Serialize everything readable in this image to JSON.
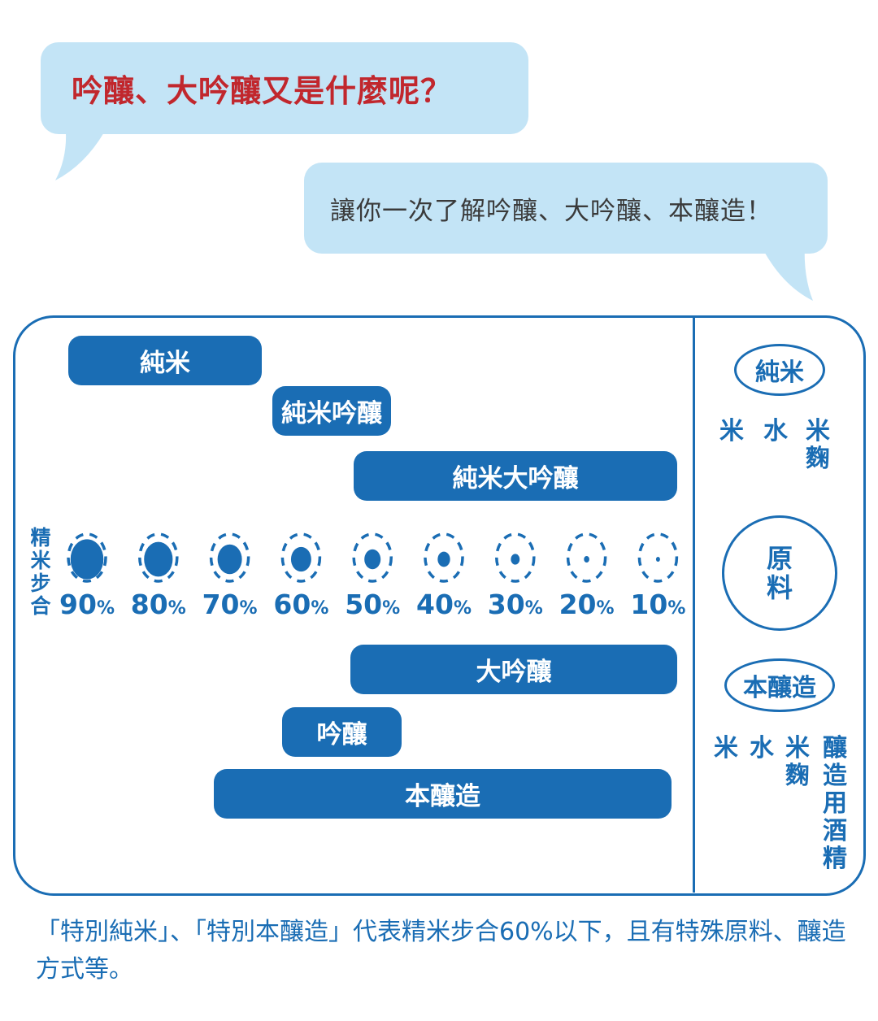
{
  "header": {
    "question": "吟釀、大吟釀又是什麼呢？",
    "answer": "讓你一次了解吟釀、大吟釀、本釀造！"
  },
  "colors": {
    "brand_blue": "#1a6db4",
    "bubble": "#c3e4f6",
    "question_red": "#c1272d"
  },
  "bars": {
    "junmai": "純米",
    "junmai_ginjo": "純米吟釀",
    "junmai_daiginjo": "純米大吟釀",
    "daiginjo": "大吟釀",
    "ginjo": "吟釀",
    "honjozo": "本釀造"
  },
  "polishing": {
    "label": "精米步合",
    "unit": "%",
    "ratios": [
      90,
      80,
      70,
      60,
      50,
      40,
      30,
      20,
      10
    ]
  },
  "ingredients": {
    "title": "原料",
    "junmai": {
      "label": "純米",
      "items": [
        "米",
        "水",
        "米麴"
      ]
    },
    "honjozo": {
      "label": "本釀造",
      "items": [
        "米",
        "水",
        "米麴",
        "釀造用酒精"
      ]
    }
  },
  "note": "「特別純米」、「特別本釀造」代表精米步合60%以下，且有特殊原料、釀造方式等。"
}
